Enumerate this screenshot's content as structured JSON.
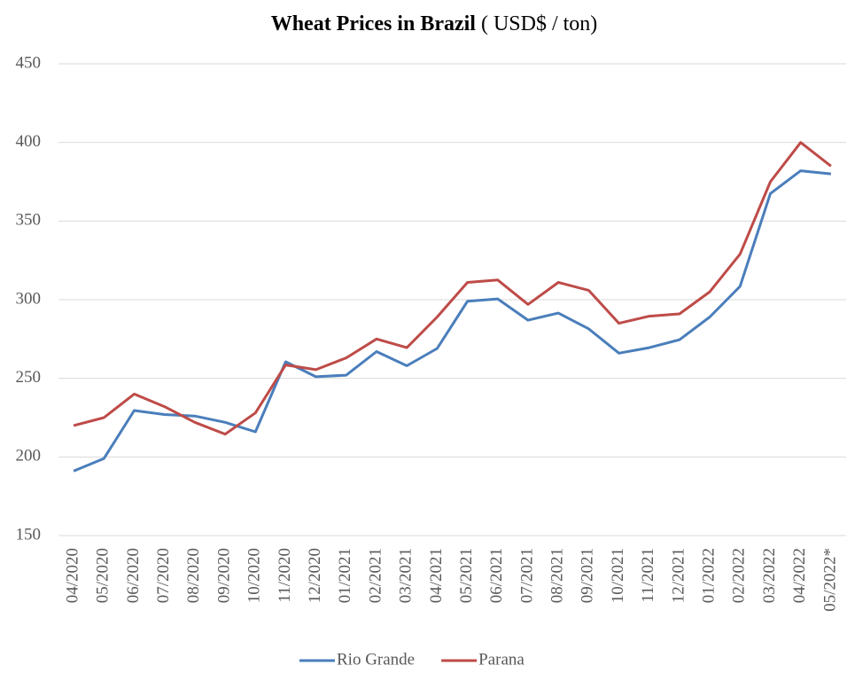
{
  "chart_data": {
    "type": "line",
    "title": "Wheat Prices in Brazil",
    "subtitle": "( USD$ / ton)",
    "categories": [
      "04/2020",
      "05/2020",
      "06/2020",
      "07/2020",
      "08/2020",
      "09/2020",
      "10/2020",
      "11/2020",
      "12/2020",
      "01/2021",
      "02/2021",
      "03/2021",
      "04/2021",
      "05/2021",
      "06/2021",
      "07/2021",
      "08/2021",
      "09/2021",
      "10/2021",
      "11/2021",
      "12/2021",
      "01/2022",
      "02/2022",
      "03/2022",
      "04/2022",
      "05/2022*"
    ],
    "series": [
      {
        "name": "Rio Grande",
        "color": "#4a7ebb",
        "values": [
          191,
          199,
          229.5,
          227,
          226,
          222,
          216,
          260.5,
          251,
          252,
          267,
          258,
          269,
          299,
          300.5,
          287,
          291.5,
          281.5,
          266,
          269.5,
          274.5,
          289,
          308.5,
          367.5,
          382,
          380
        ]
      },
      {
        "name": "Parana",
        "color": "#be4b48",
        "values": [
          220,
          225,
          240,
          232,
          222,
          214.5,
          228,
          258.5,
          255.5,
          263,
          275,
          269.5,
          289,
          311,
          312.5,
          297,
          311,
          306,
          285,
          289.5,
          291,
          305,
          329,
          375,
          400,
          385
        ]
      }
    ],
    "ylim": [
      150,
      450
    ],
    "yticks": [
      150,
      200,
      250,
      300,
      350,
      400,
      450
    ],
    "grid": true,
    "legend": "bottom"
  }
}
